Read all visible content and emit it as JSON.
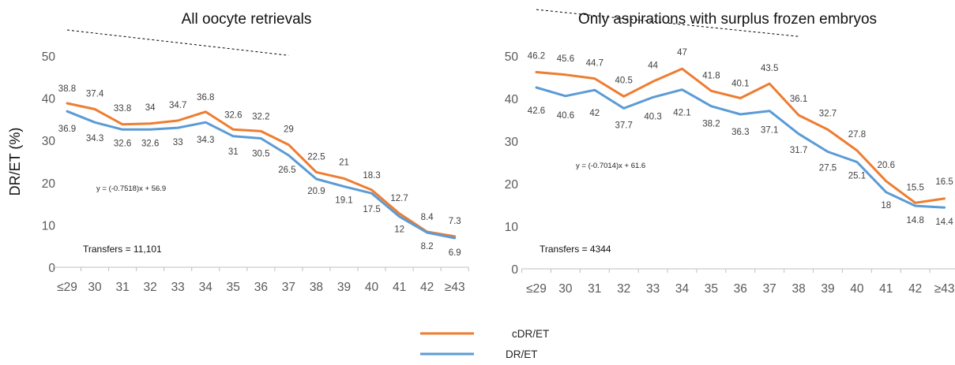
{
  "legend": {
    "items": [
      {
        "label": "cDR/ET",
        "color": "#ED7D31"
      },
      {
        "label": "DR/ET",
        "color": "#5B9BD5"
      }
    ]
  },
  "chart_data": [
    {
      "type": "line",
      "title": "All oocyte retrievals",
      "ylabel": "DR/ET (%)",
      "xlabel": "",
      "ylim": [
        0,
        50
      ],
      "yticks": [
        0,
        10,
        20,
        30,
        40,
        50
      ],
      "categories": [
        "≤29",
        "30",
        "31",
        "32",
        "33",
        "34",
        "35",
        "36",
        "37",
        "38",
        "39",
        "40",
        "41",
        "42",
        "≥43"
      ],
      "series": [
        {
          "name": "cDR/ET",
          "color": "#ED7D31",
          "values": [
            38.8,
            37.4,
            33.8,
            34,
            34.7,
            36.8,
            32.6,
            32.2,
            29,
            22.5,
            21,
            18.3,
            12.7,
            8.4,
            7.3
          ]
        },
        {
          "name": "DR/ET",
          "color": "#5B9BD5",
          "values": [
            36.9,
            34.3,
            32.6,
            32.6,
            33,
            34.3,
            31,
            30.5,
            26.5,
            20.9,
            19.1,
            17.5,
            12,
            8.2,
            6.9
          ]
        }
      ],
      "trendline": {
        "equation": "y = (-0.7518)x + 56.9",
        "slope": -0.7518,
        "intercept": 56.9,
        "x_range": [
          1,
          9
        ]
      },
      "annotation": "Transfers = 11,101"
    },
    {
      "type": "line",
      "title": "Only aspirations with surplus frozen embryos",
      "ylabel": "",
      "xlabel": "",
      "ylim": [
        0,
        50
      ],
      "yticks": [
        0,
        10,
        20,
        30,
        40,
        50
      ],
      "categories": [
        "≤29",
        "30",
        "31",
        "32",
        "33",
        "34",
        "35",
        "36",
        "37",
        "38",
        "39",
        "40",
        "41",
        "42",
        "≥43"
      ],
      "series": [
        {
          "name": "cDR/ET",
          "color": "#ED7D31",
          "values": [
            46.2,
            45.6,
            44.7,
            40.5,
            44,
            47,
            41.8,
            40.1,
            43.5,
            36.1,
            32.7,
            27.8,
            20.6,
            15.5,
            16.5
          ]
        },
        {
          "name": "DR/ET",
          "color": "#5B9BD5",
          "values": [
            42.6,
            40.6,
            42,
            37.7,
            40.3,
            42.1,
            38.2,
            36.3,
            37.1,
            31.7,
            27.5,
            25.1,
            18,
            14.8,
            14.4
          ]
        }
      ],
      "trendline": {
        "equation": "y = (-0.7014)x + 61.6",
        "slope": -0.7014,
        "intercept": 61.6,
        "x_range": [
          1,
          10
        ]
      },
      "annotation": "Transfers = 4344"
    }
  ]
}
